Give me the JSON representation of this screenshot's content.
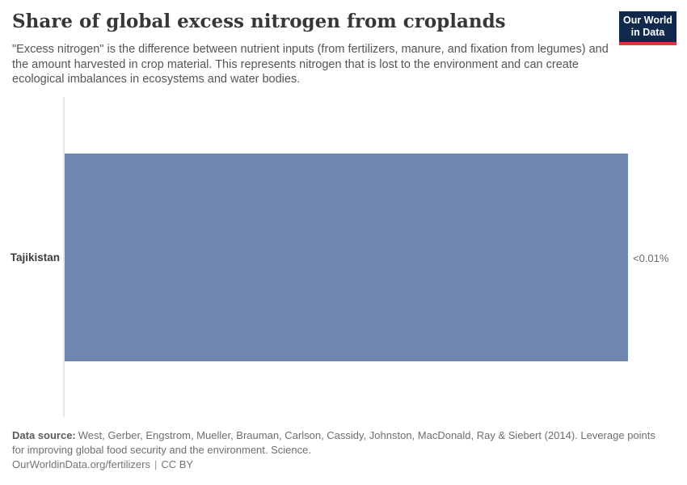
{
  "header": {
    "title": "Share of global excess nitrogen from croplands",
    "subtitle": "\"Excess nitrogen\" is the difference between nutrient inputs (from fertilizers, manure, and fixation from legumes) and the amount harvested in crop material. This represents nitrogen that is lost to the environment and can create ecological imbalances in ecosystems and water bodies.",
    "logo": {
      "line1": "Our World",
      "line2": "in Data"
    }
  },
  "chart_data": {
    "type": "bar",
    "orientation": "horizontal",
    "title": "Share of global excess nitrogen from croplands",
    "categories": [
      "Tajikistan"
    ],
    "values": [
      0.01
    ],
    "value_labels": [
      "<0.01%"
    ],
    "unit": "%",
    "xlabel": "",
    "ylabel": "",
    "grid": false,
    "legend": false
  },
  "colors": {
    "bar": "#6f86ae",
    "logo_bg": "#12294e",
    "logo_stripe": "#d93b3b",
    "axis": "#e7e7e7"
  },
  "footer": {
    "data_source_label": "Data source:",
    "data_source_text": "West, Gerber, Engstrom, Mueller, Brauman, Carlson, Cassidy, Johnston, MacDonald, Ray & Siebert (2014). Leverage points for improving global food security and the environment. Science.",
    "url": "OurWorldinData.org/fertilizers",
    "separator": "|",
    "license": "CC BY"
  }
}
